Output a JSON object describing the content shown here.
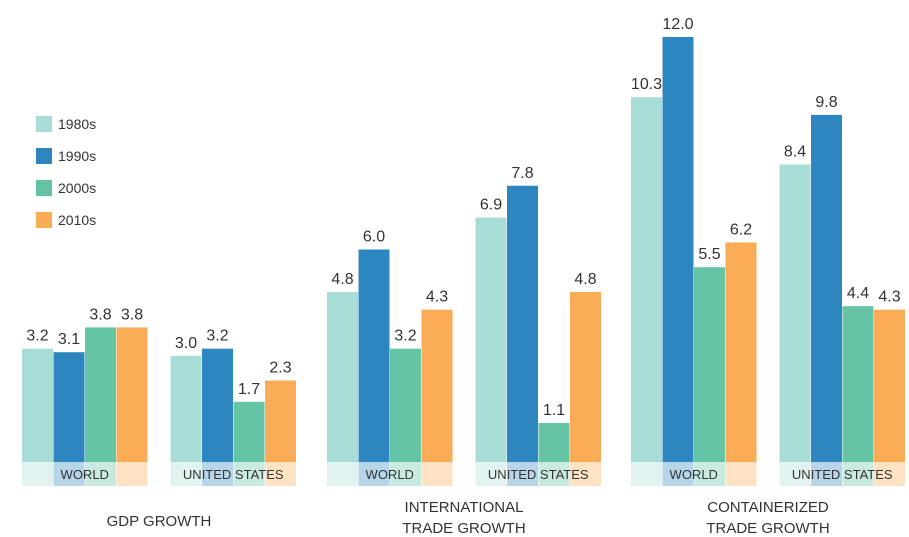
{
  "chart_data": {
    "type": "bar",
    "series": [
      {
        "name": "1980s",
        "color": "#a8dcd6"
      },
      {
        "name": "1990s",
        "color": "#2e86c1"
      },
      {
        "name": "2000s",
        "color": "#64c4a5"
      },
      {
        "name": "2010s",
        "color": "#f9ab55"
      }
    ],
    "panels": [
      {
        "title": "GDP GROWTH",
        "groups": [
          {
            "label": "WORLD",
            "values": [
              3.2,
              3.1,
              3.8,
              3.8
            ]
          },
          {
            "label": "UNITED STATES",
            "values": [
              3.0,
              3.2,
              1.7,
              2.3
            ]
          }
        ]
      },
      {
        "title": "INTERNATIONAL TRADE GROWTH",
        "title_lines": [
          "INTERNATIONAL",
          "TRADE GROWTH"
        ],
        "groups": [
          {
            "label": "WORLD",
            "values": [
              4.8,
              6.0,
              3.2,
              4.3
            ]
          },
          {
            "label": "UNITED STATES",
            "values": [
              6.9,
              7.8,
              1.1,
              4.8
            ]
          }
        ]
      },
      {
        "title": "CONTAINERIZED TRADE GROWTH",
        "title_lines": [
          "CONTAINERIZED",
          "TRADE GROWTH"
        ],
        "groups": [
          {
            "label": "WORLD",
            "values": [
              10.3,
              12.0,
              5.5,
              6.2
            ]
          },
          {
            "label": "UNITED STATES",
            "values": [
              8.4,
              9.8,
              4.4,
              4.3
            ]
          }
        ]
      }
    ],
    "ylim": [
      0,
      12.0
    ],
    "legend_position": "left"
  }
}
